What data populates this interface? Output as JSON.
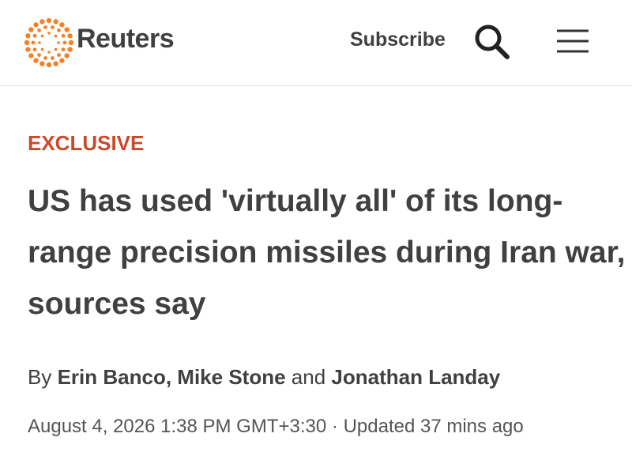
{
  "header": {
    "logo": "Reuters",
    "subscribe": "Subscribe"
  },
  "article": {
    "label": "EXCLUSIVE",
    "headline": "US has used 'virtually all' of its long-range precision missiles during Iran war, sources say",
    "byline": {
      "prefix": "By",
      "authors": [
        "Erin Banco",
        "Mike Stone",
        "Jonathan Landay"
      ],
      "separator": ",",
      "conjunction": "and"
    },
    "date": "August 4, 2026 1:38 PM GMT+3:30",
    "dot": "·",
    "updated": "Updated 37 mins ago"
  }
}
